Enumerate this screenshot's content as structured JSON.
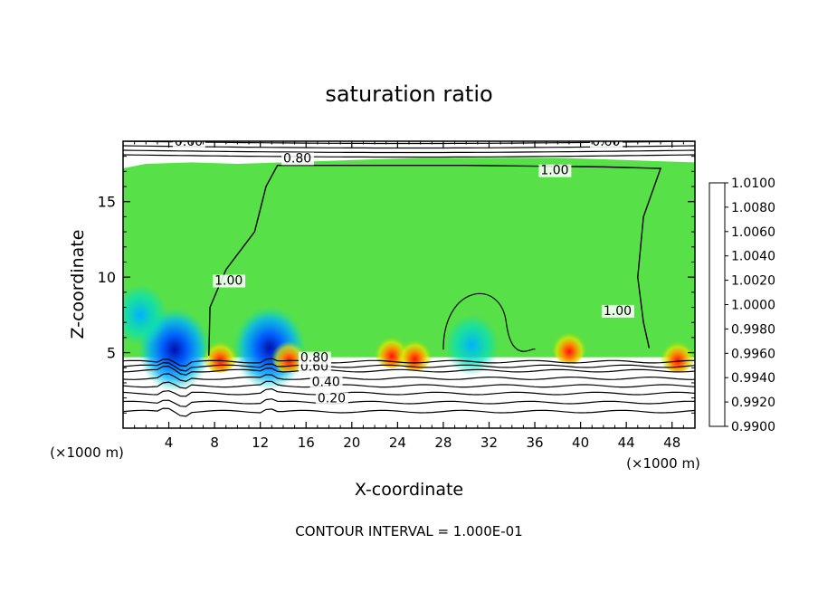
{
  "chart_data": {
    "type": "heatmap",
    "title": "saturation ratio",
    "xlabel": "X-coordinate",
    "ylabel": "Z-coordinate",
    "x_unit_left": "(×1000 m)",
    "x_unit_right": "(×1000 m)",
    "xlim": [
      0,
      50
    ],
    "ylim": [
      0,
      19
    ],
    "xticks": [
      4,
      8,
      12,
      16,
      20,
      24,
      28,
      32,
      36,
      40,
      44,
      48
    ],
    "xtick_labels": [
      "4",
      "8",
      "12",
      "16",
      "20",
      "24",
      "28",
      "32",
      "36",
      "40",
      "44",
      "48"
    ],
    "yticks": [
      5,
      10,
      15
    ],
    "ytick_labels": [
      "5",
      "10",
      "15"
    ],
    "footer": "CONTOUR INTERVAL = 1.000E-01",
    "colorbar": {
      "range": [
        0.99,
        1.01
      ],
      "levels": [
        0.99,
        0.992,
        0.994,
        0.996,
        0.998,
        1.0,
        1.002,
        1.004,
        1.006,
        1.008,
        1.01
      ],
      "labels": [
        "1.0100",
        "1.0080",
        "1.0060",
        "1.0040",
        "1.0020",
        "1.0000",
        "0.9980",
        "0.9960",
        "0.9940",
        "0.9920",
        "0.9900"
      ],
      "colors": [
        "#7b00a0",
        "#0010b0",
        "#0060ff",
        "#00b0ff",
        "#00e0c0",
        "#00d000",
        "#80e000",
        "#e8e800",
        "#ff8000",
        "#ff1010",
        "#ff8080"
      ]
    },
    "field": {
      "base_color": "#50e040",
      "cloud_zmin": 4.7,
      "cloud_top_profile": [
        [
          0,
          17.2
        ],
        [
          2,
          17.5
        ],
        [
          6,
          17.6
        ],
        [
          10,
          17.5
        ],
        [
          14,
          17.6
        ],
        [
          18,
          17.7
        ],
        [
          22,
          17.8
        ],
        [
          26,
          17.9
        ],
        [
          30,
          17.9
        ],
        [
          34,
          17.9
        ],
        [
          38,
          17.9
        ],
        [
          42,
          17.8
        ],
        [
          46,
          17.7
        ],
        [
          50,
          17.6
        ]
      ],
      "moist_spots": [
        {
          "x": 4.5,
          "z": 5.2,
          "min": 0.991
        },
        {
          "x": 12.8,
          "z": 5.3,
          "min": 0.993
        },
        {
          "x": 1.5,
          "z": 7.5,
          "min": 0.996
        },
        {
          "x": 30.5,
          "z": 5.5,
          "min": 0.996
        }
      ],
      "warm_spots": [
        {
          "x": 8.5,
          "z": 5.0,
          "max": 1.007
        },
        {
          "x": 14.5,
          "z": 5.0,
          "max": 1.006
        },
        {
          "x": 23.5,
          "z": 5.3,
          "max": 1.006
        },
        {
          "x": 25.5,
          "z": 5.1,
          "max": 1.006
        },
        {
          "x": 39.0,
          "z": 5.6,
          "max": 1.007
        },
        {
          "x": 48.5,
          "z": 5.0,
          "max": 1.006
        }
      ]
    },
    "contours": [
      {
        "level": 0.2,
        "label": "0.20",
        "label_x": 17.0,
        "z": 1.7
      },
      {
        "level": 0.4,
        "label": "0.40",
        "label_x": 16.5,
        "z": 2.8
      },
      {
        "level": 0.6,
        "label": "0.60",
        "label_x": 15.5,
        "z": 3.8
      },
      {
        "level": 0.8,
        "label": "0.80",
        "label_x": 15.5,
        "z": 4.4
      },
      {
        "level": 0.8,
        "label": "0.80",
        "label_x": 14.0,
        "z": 17.6
      },
      {
        "level": 0.6,
        "label": "0.60",
        "label_x": 4.5,
        "z": 18.7
      },
      {
        "level": 0.6,
        "label": "0.60",
        "label_x": 41.0,
        "z": 18.7
      },
      {
        "level": 1.0,
        "label": "1.00",
        "label_x": 36.5,
        "z": 16.8
      },
      {
        "level": 1.0,
        "label": "1.00",
        "label_x": 8.0,
        "z": 9.5
      },
      {
        "level": 1.0,
        "label": "1.00",
        "label_x": 42.0,
        "z": 7.5
      }
    ]
  }
}
